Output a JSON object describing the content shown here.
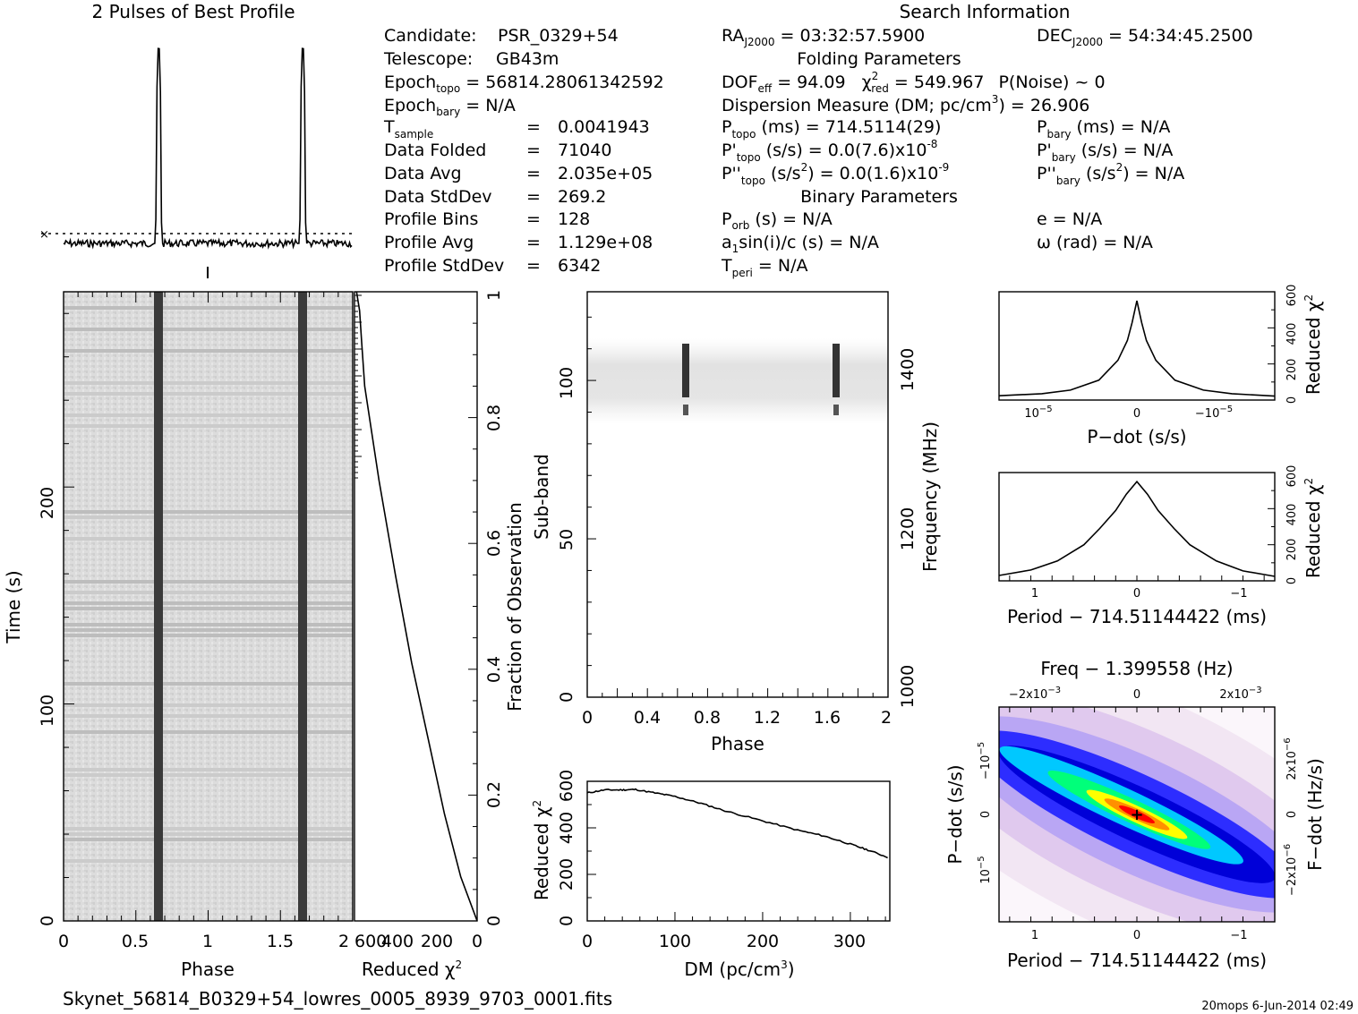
{
  "profile": {
    "title": "2 Pulses of Best Profile"
  },
  "search": {
    "title": "Search Information",
    "folding_title": "Folding Parameters",
    "binary_title": "Binary Parameters",
    "candidate_label": "Candidate:",
    "candidate": "PSR_0329+54",
    "telescope_label": "Telescope:",
    "telescope": "GB43m",
    "epoch_topo_main": "Epoch",
    "epoch_topo_sub": "topo",
    "epoch_topo_rest": " = 56814.28061342592",
    "epoch_bary_main": "Epoch",
    "epoch_bary_sub": "bary",
    "epoch_bary_rest": " = N/A",
    "tsample_main": "T",
    "tsample_sub": "sample",
    "tsample_value": "0.0041943",
    "data_folded_label": "Data Folded",
    "data_folded": "71040",
    "data_avg_label": "Data Avg",
    "data_avg": "2.035e+05",
    "data_stddev_label": "Data StdDev",
    "data_stddev": "269.2",
    "profile_bins_label": "Profile Bins",
    "profile_bins": "128",
    "profile_avg_label": "Profile Avg",
    "profile_avg": "1.129e+08",
    "profile_stddev_label": "Profile StdDev",
    "profile_stddev": "6342",
    "eq": "=",
    "ra_main": "RA",
    "ra_sub": "J2000",
    "ra_rest": " = 03:32:57.5900",
    "dec_main": "DEC",
    "dec_sub": "J2000",
    "dec_rest": " = 54:34:45.2500",
    "dof_main": "DOF",
    "dof_sub": "eff",
    "dof_rest": " = 94.09",
    "chi_main": "χ",
    "chi_sup": "2",
    "chi_sub": "red",
    "chi_rest": " = 549.967",
    "pnoise": "P(Noise) ~ 0",
    "dm_text": "Dispersion Measure (DM; pc/cm",
    "dm_sup": "3",
    "dm_rest": ") = 26.906",
    "ptopo_main": "P",
    "ptopo_sub": "topo",
    "ptopo_rest": " (ms) =  714.5114(29)",
    "pdtopo_main": "P'",
    "pdtopo_sub": "topo",
    "pdtopo_rest": " (s/s) = 0.0(7.6)x10",
    "pdtopo_exp": "-8",
    "pddtopo_main": "P''",
    "pddtopo_sub": "topo",
    "pddtopo_rest": " (s/s",
    "pddtopo_sup": "2",
    "pddtopo_rest2": ") = 0.0(1.6)x10",
    "pddtopo_exp": "-9",
    "pbary_main": "P",
    "pbary_sub": "bary",
    "pbary_rest": " (ms) = N/A",
    "pdbary_main": "P'",
    "pdbary_sub": "bary",
    "pdbary_rest": " (s/s) = N/A",
    "pddbary_main": "P''",
    "pddbary_sub": "bary",
    "pddbary_rest": " (s/s",
    "pddbary_sup": "2",
    "pddbary_rest2": ") = N/A",
    "porb_main": "P",
    "porb_sub": "orb",
    "porb_rest": " (s) = N/A",
    "a1_main": "a",
    "a1_sub": "1",
    "a1_rest": "sin(i)/c (s) = N/A",
    "tperi_main": "T",
    "tperi_sub": "peri",
    "tperi_rest": " = N/A",
    "ecc": "e = N/A",
    "omega": "ω (rad) = N/A"
  },
  "footer": {
    "filename": "Skynet_56814_B0329+54_lowres_0005_8939_9703_0001.fits",
    "stamp": "20mops  6-Jun-2014 02:49"
  },
  "chart_data": [
    {
      "id": "pulse-profile",
      "type": "line",
      "title": "2 Pulses of Best Profile",
      "x_range": [
        0,
        2
      ],
      "pulse_phases": [
        0.66,
        1.66
      ],
      "pulse_heights_relative": [
        1.0,
        1.0
      ],
      "baseline_marker": "dotted line with x marker at left"
    },
    {
      "id": "time-vs-phase",
      "type": "heatmap",
      "xlabel": "Phase",
      "ylabel": "Time (s)",
      "xlim": [
        0,
        2
      ],
      "ylim": [
        0,
        290
      ],
      "x_ticks": [
        "0",
        "0.5",
        "1",
        "1.5",
        "2"
      ],
      "y_ticks": [
        "0",
        "100",
        "200"
      ],
      "pulse_phases": [
        0.66,
        1.66
      ],
      "colormap": "grayscale"
    },
    {
      "id": "reduced-chi2-vs-fraction",
      "type": "line",
      "xlabel": "Reduced χ2",
      "ylabel": "Fraction of Observation",
      "xlim": [
        600,
        0
      ],
      "ylim": [
        0,
        1
      ],
      "x_ticks": [
        "600",
        "400",
        "200",
        "0"
      ],
      "y_ticks": [
        "0",
        "0.2",
        "0.4",
        "0.6",
        "0.8",
        "1"
      ],
      "x": [
        0,
        80,
        160,
        240,
        320,
        400,
        480,
        550,
        565,
        575,
        590
      ],
      "y": [
        0,
        0.07,
        0.17,
        0.29,
        0.41,
        0.55,
        0.7,
        0.85,
        0.92,
        0.97,
        1.0
      ]
    },
    {
      "id": "subband-vs-phase",
      "type": "heatmap",
      "xlabel": "Phase",
      "ylabel": "Sub-band",
      "y2label": "Frequency (MHz)",
      "xlim": [
        0,
        2
      ],
      "ylim": [
        0,
        128
      ],
      "x_ticks": [
        "0",
        "0.4",
        "0.8",
        "1.2",
        "1.6",
        "2"
      ],
      "y_ticks": [
        "0",
        "50",
        "100"
      ],
      "y2_ticks": [
        "1000",
        "1200",
        "1400"
      ],
      "signal_subbands": [
        89,
        113
      ],
      "pulse_phases": [
        0.64,
        1.64
      ],
      "colormap": "grayscale"
    },
    {
      "id": "chi2-vs-dm",
      "type": "line",
      "xlabel": "DM (pc/cm3)",
      "ylabel": "Reduced χ2",
      "xlim": [
        0,
        345
      ],
      "ylim": [
        0,
        600
      ],
      "x_ticks": [
        "0",
        "100",
        "200",
        "300"
      ],
      "y_ticks": [
        "0",
        "200",
        "400",
        "600"
      ],
      "x": [
        0,
        20,
        40,
        55,
        80,
        100,
        130,
        160,
        200,
        240,
        270,
        300,
        320,
        345
      ],
      "y": [
        550,
        563,
        563,
        565,
        548,
        535,
        505,
        470,
        430,
        390,
        365,
        330,
        305,
        270
      ]
    },
    {
      "id": "chi2-vs-pdot",
      "type": "line",
      "xlabel": "P-dot (s/s)",
      "ylabel": "Reduced χ2",
      "xlim": [
        1.45e-05,
        -1.45e-05
      ],
      "ylim": [
        0,
        600
      ],
      "x_ticks": [
        "10−5",
        "0",
        "−10−5"
      ],
      "y_ticks": [
        "0",
        "200",
        "400",
        "600"
      ],
      "x": [
        1.45e-05,
        1e-05,
        7e-06,
        4e-06,
        2e-06,
        1e-06,
        5e-07,
        0,
        -5e-07,
        -1e-06,
        -2e-06,
        -4e-06,
        -7e-06,
        -1e-05,
        -1.45e-05
      ],
      "y": [
        24,
        35,
        55,
        110,
        220,
        330,
        430,
        550,
        430,
        330,
        220,
        110,
        55,
        35,
        22
      ]
    },
    {
      "id": "chi2-vs-period",
      "type": "line",
      "xlabel": "Period − 714.51144422 (ms)",
      "ylabel": "Reduced χ2",
      "xlim": [
        1.3,
        -1.3
      ],
      "ylim": [
        0,
        600
      ],
      "x_ticks": [
        "1",
        "0",
        "−1"
      ],
      "y_ticks": [
        "0",
        "200",
        "400",
        "600"
      ],
      "x": [
        1.3,
        1.0,
        0.75,
        0.5,
        0.35,
        0.2,
        0.1,
        0,
        -0.1,
        -0.2,
        -0.35,
        -0.5,
        -0.75,
        -1.0,
        -1.3
      ],
      "y": [
        30,
        60,
        110,
        200,
        290,
        390,
        480,
        550,
        480,
        390,
        290,
        200,
        110,
        55,
        25
      ]
    },
    {
      "id": "pdot-vs-period",
      "type": "heatmap",
      "title": "Freq − 1.399558 (Hz)",
      "xlabel": "Period − 714.51144422 (ms)",
      "ylabel": "P-dot (s/s)",
      "y2label": "F-dot (Hz/s)",
      "xlim": [
        1.3,
        -1.3
      ],
      "x_ticks": [
        "1",
        "0",
        "−1"
      ],
      "x2_ticks": [
        "−2x10−3",
        "0",
        "2x10−3"
      ],
      "y_ticks": [
        "10−5",
        "0",
        "−10−5"
      ],
      "y2_ticks": [
        "−2x10−6",
        "0",
        "2x10−6"
      ],
      "best": [
        0,
        0
      ],
      "colormap": "rainbow"
    }
  ]
}
